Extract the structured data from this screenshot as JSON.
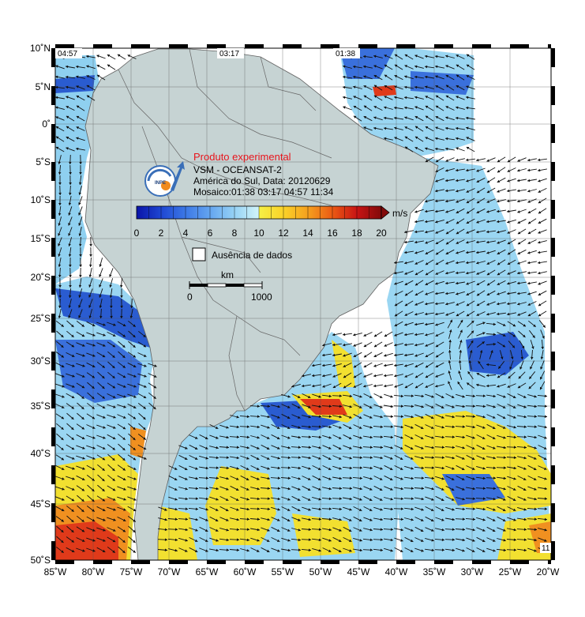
{
  "map": {
    "lon_range": [
      -85,
      -20
    ],
    "lat_range": [
      -50,
      10
    ],
    "lon_ticks": [
      "85˚W",
      "80˚W",
      "75˚W",
      "70˚W",
      "65˚W",
      "60˚W",
      "55˚W",
      "50˚W",
      "45˚W",
      "40˚W",
      "35˚W",
      "30˚W",
      "25˚W",
      "20˚W"
    ],
    "lat_ticks": [
      "10˚N",
      "5˚N",
      "0˚",
      "5˚S",
      "10˚S",
      "15˚S",
      "20˚S",
      "25˚S",
      "30˚S",
      "35˚S",
      "40˚S",
      "45˚S",
      "50˚S"
    ],
    "pass_times": [
      "04:57",
      "03:17",
      "01:38",
      "11"
    ]
  },
  "info": {
    "title": "Produto experimental",
    "line1": "VSM - OCEANSAT-2",
    "line2": "América do Sul, Data: 20120629",
    "line3": "Mosaico:01:38 03:17 04:57 11:34",
    "logo_text": "INPE"
  },
  "colorbar": {
    "unit": "m/s",
    "ticks": [
      "0",
      "2",
      "4",
      "6",
      "8",
      "10",
      "12",
      "14",
      "16",
      "18",
      "20"
    ],
    "colors": [
      "#0a14a8",
      "#1e46d2",
      "#3c78e6",
      "#64a5f0",
      "#96d2f5",
      "#c8f0fa",
      "#f5f046",
      "#fad228",
      "#f5a01e",
      "#eb5a14",
      "#c81414",
      "#820a0a"
    ]
  },
  "legend": {
    "no_data_label": "Ausência de dados"
  },
  "scale_bar": {
    "unit": "km",
    "start": "0",
    "end": "1000"
  },
  "colors": {
    "land": "#c6d3d3",
    "missing": "#ffffff",
    "low_wind": "#2255cc",
    "mid_wind": "#9ad6f2",
    "high_wind": "#f2e030",
    "strong_wind": "#e63a1a"
  }
}
